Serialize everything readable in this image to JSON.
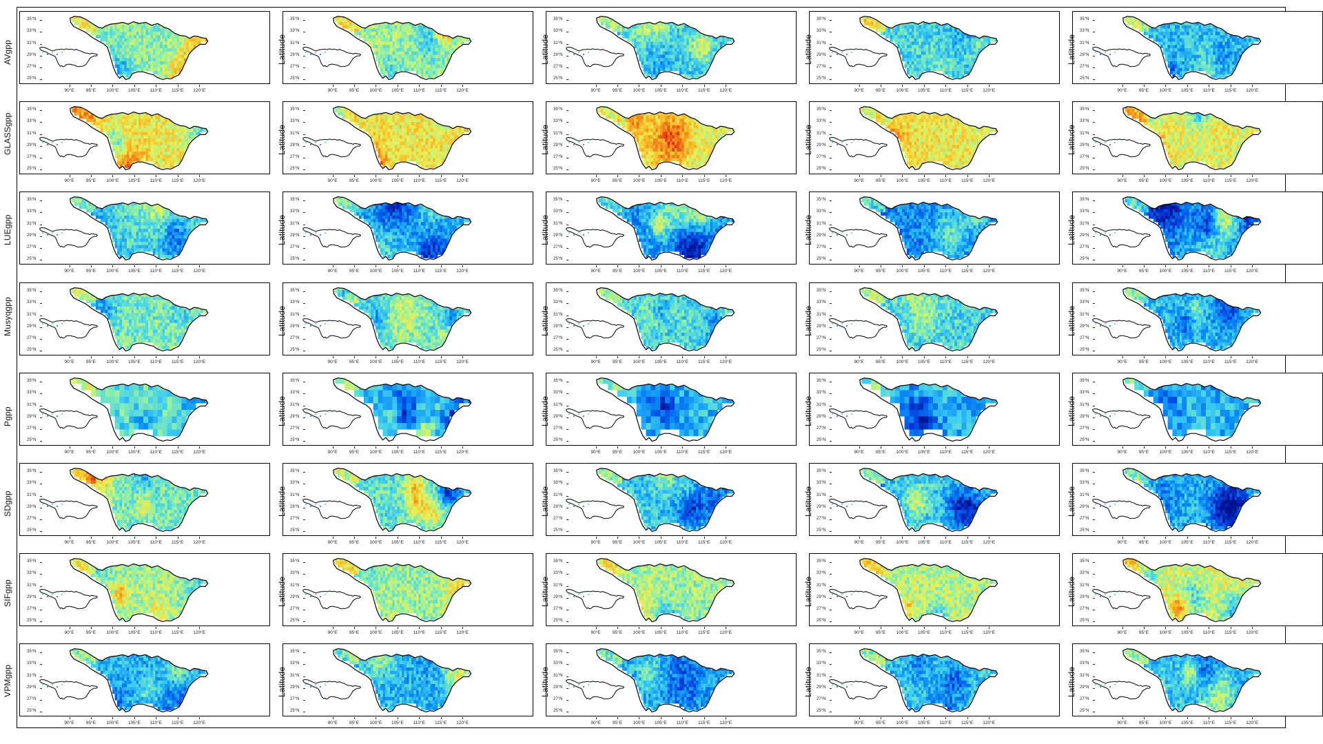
{
  "figure": {
    "y_axis_label_repeat": "Latitude",
    "rows": [
      {
        "label": "AVgpp"
      },
      {
        "label": "GLASSgpp"
      },
      {
        "label": "LUEgpp"
      },
      {
        "label": "Musyqgpp"
      },
      {
        "label": "Pgpp"
      },
      {
        "label": "SDgpp"
      },
      {
        "label": "SIFgpp"
      },
      {
        "label": "VPMgpp"
      }
    ],
    "columns": 5,
    "lat_ticks": [
      "35°N",
      "33°N",
      "31°N",
      "29°N",
      "27°N",
      "25°N"
    ],
    "lon_ticks": [
      "90°E",
      "95°E",
      "100°E",
      "105°E",
      "110°E",
      "115°E",
      "120°E"
    ],
    "colormap": [
      "#00128f",
      "#0040e0",
      "#0a8cf5",
      "#3fd0f0",
      "#8ff0a8",
      "#e6f25a",
      "#f8c02a",
      "#f57a18",
      "#d62a10"
    ],
    "panel_intensity": [
      [
        0.5,
        0.52,
        0.38,
        0.4,
        0.34
      ],
      [
        0.66,
        0.66,
        0.62,
        0.66,
        0.62
      ],
      [
        0.4,
        0.33,
        0.27,
        0.24,
        0.27
      ],
      [
        0.47,
        0.43,
        0.4,
        0.4,
        0.33
      ],
      [
        0.43,
        0.38,
        0.33,
        0.31,
        0.33
      ],
      [
        0.47,
        0.43,
        0.36,
        0.38,
        0.33
      ],
      [
        0.54,
        0.52,
        0.52,
        0.56,
        0.62
      ],
      [
        0.33,
        0.33,
        0.31,
        0.36,
        0.36
      ]
    ]
  }
}
